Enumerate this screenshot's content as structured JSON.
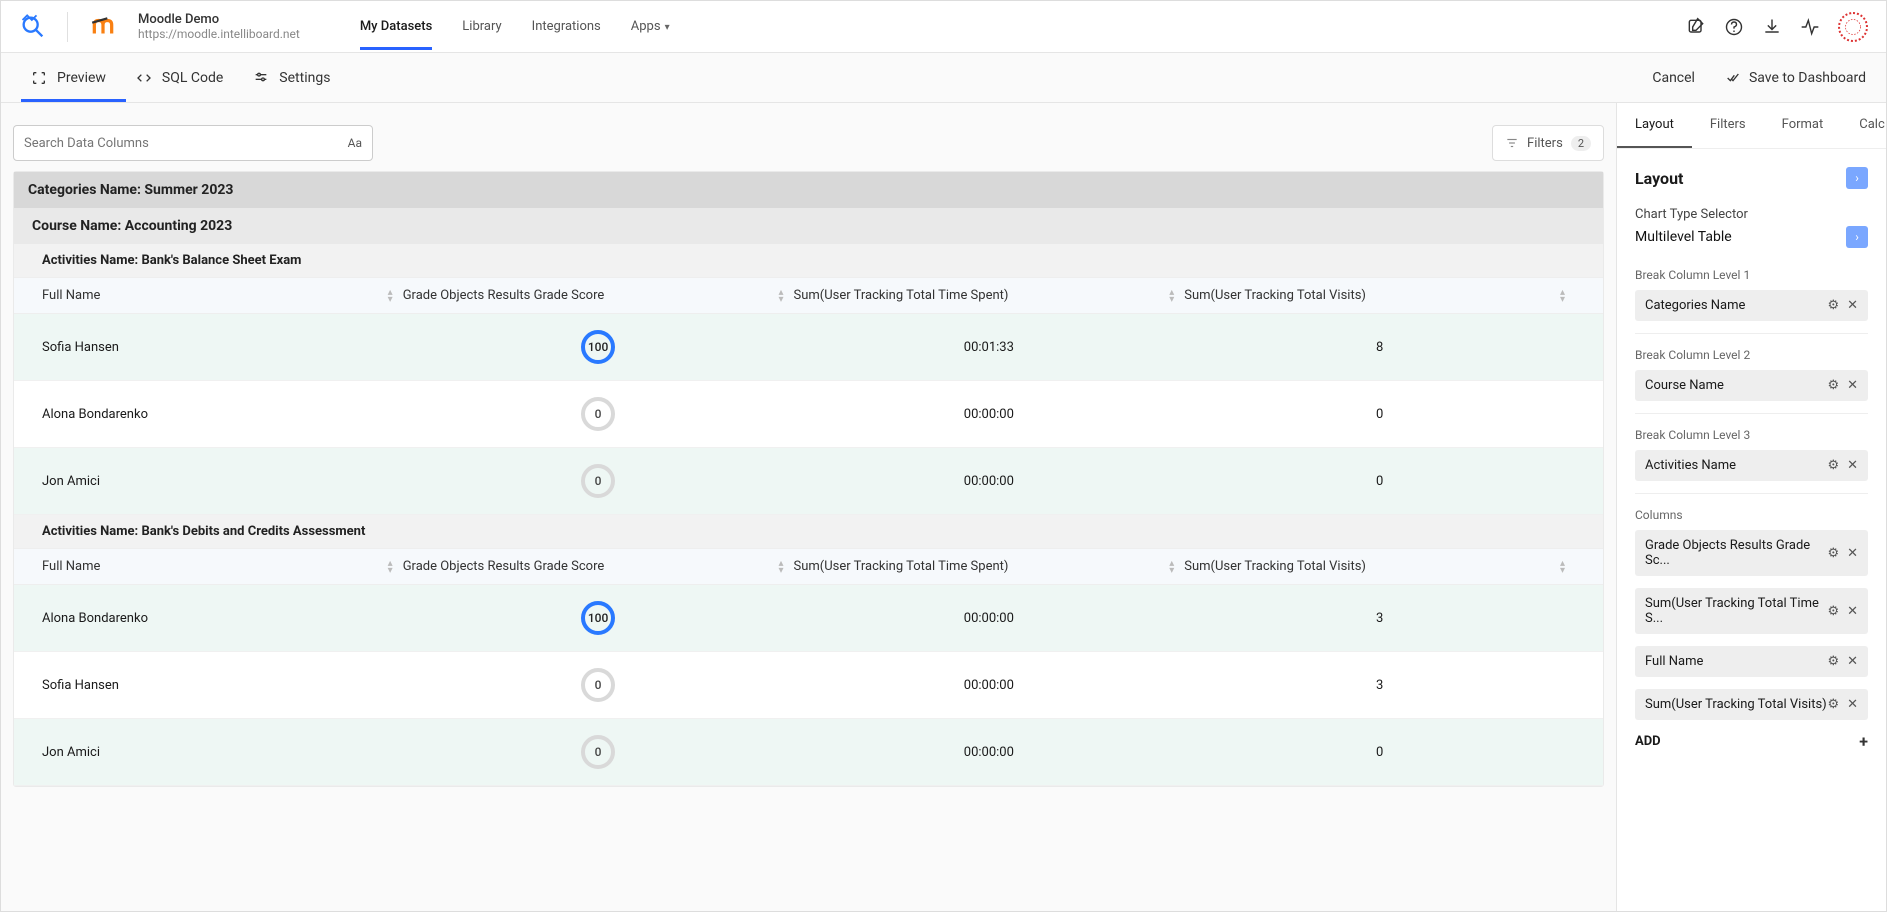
{
  "topbar": {
    "site_title": "Moodle Demo",
    "site_url": "https://moodle.intelliboard.net",
    "nav": [
      {
        "label": "My Datasets",
        "active": true
      },
      {
        "label": "Library",
        "active": false
      },
      {
        "label": "Integrations",
        "active": false
      },
      {
        "label": "Apps",
        "active": false,
        "chevron": true
      }
    ]
  },
  "subbar": {
    "tabs": [
      {
        "label": "Preview",
        "active": true
      },
      {
        "label": "SQL Code",
        "active": false
      },
      {
        "label": "Settings",
        "active": false
      }
    ],
    "cancel": "Cancel",
    "save": "Save to Dashboard"
  },
  "search": {
    "placeholder": "Search Data Columns",
    "aa": "Aa"
  },
  "filters_btn": {
    "label": "Filters",
    "count": "2"
  },
  "table": {
    "columns": [
      "Full Name",
      "Grade Objects Results Grade Score",
      "Sum(User Tracking Total Time Spent)",
      "Sum(User Tracking Total Visits)"
    ],
    "level1": {
      "label_prefix": "Categories Name: ",
      "label_value": "Summer 2023",
      "level2": {
        "label_prefix": "Course Name: ",
        "label_value": "Accounting 2023",
        "activities": [
          {
            "label_prefix": "Activities Name: ",
            "label_value": "Bank's Balance Sheet Exam",
            "rows": [
              {
                "name": "Sofia Hansen",
                "score": "100",
                "score_full": true,
                "time": "00:01:33",
                "visits": "8",
                "striped": true
              },
              {
                "name": "Alona Bondarenko",
                "score": "0",
                "score_full": false,
                "time": "00:00:00",
                "visits": "0",
                "striped": false
              },
              {
                "name": "Jon Amici",
                "score": "0",
                "score_full": false,
                "time": "00:00:00",
                "visits": "0",
                "striped": true
              }
            ]
          },
          {
            "label_prefix": "Activities Name: ",
            "label_value": "Bank's Debits and Credits Assessment",
            "rows": [
              {
                "name": "Alona Bondarenko",
                "score": "100",
                "score_full": true,
                "time": "00:00:00",
                "visits": "3",
                "striped": true
              },
              {
                "name": "Sofia Hansen",
                "score": "0",
                "score_full": false,
                "time": "00:00:00",
                "visits": "3",
                "striped": false
              },
              {
                "name": "Jon Amici",
                "score": "0",
                "score_full": false,
                "time": "00:00:00",
                "visits": "0",
                "striped": true
              }
            ]
          }
        ]
      }
    }
  },
  "sidebar": {
    "tabs": [
      "Layout",
      "Filters",
      "Format",
      "Calc"
    ],
    "title": "Layout",
    "chart_selector_label": "Chart Type Selector",
    "chart_type": "Multilevel Table",
    "break1_label": "Break Column Level 1",
    "break1_value": "Categories Name",
    "break2_label": "Break Column Level 2",
    "break2_value": "Course Name",
    "break3_label": "Break Column Level 3",
    "break3_value": "Activities Name",
    "columns_label": "Columns",
    "columns": [
      "Grade Objects Results Grade Sc...",
      "Sum(User Tracking Total Time S...",
      "Full Name",
      "Sum(User Tracking Total Visits)"
    ],
    "add_label": "ADD"
  },
  "colors": {
    "accent": "#2962ff",
    "ring_full": "#2979ff",
    "ring_empty": "#d9d9d9",
    "stripe": "#eef7f4"
  }
}
